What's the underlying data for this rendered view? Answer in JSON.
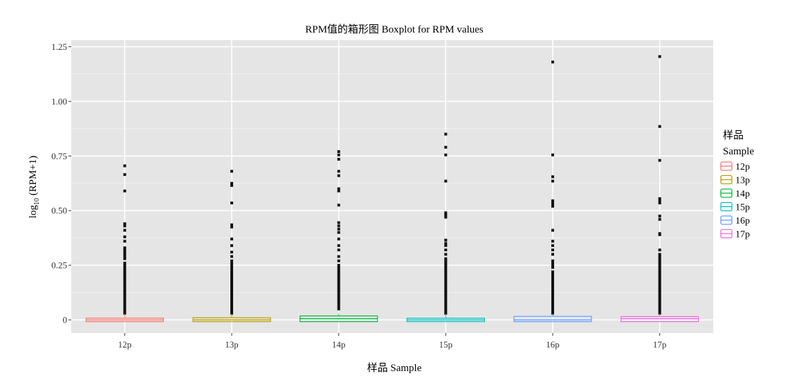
{
  "chart_data": {
    "type": "boxplot",
    "title": "RPM值的箱形图 Boxplot for RPM values",
    "xlabel": "样品 Sample",
    "ylabel": "log₁₀ (RPM+1)",
    "ylabel_prefix": "log",
    "ylabel_sub": "10",
    "ylabel_suffix": " (RPM+1)",
    "ylim": [
      -0.06,
      1.28
    ],
    "yticks": [
      0,
      0.25,
      0.5,
      0.75,
      1.0,
      1.25
    ],
    "ytick_labels": [
      "0",
      "0.25",
      "0.50",
      "0.75",
      "1.00",
      "1.25"
    ],
    "categories": [
      "12p",
      "13p",
      "14p",
      "15p",
      "16p",
      "17p"
    ],
    "grid": true,
    "legend": {
      "position": "right",
      "title_line1": "样品",
      "title_line2": "Sample",
      "entries": [
        "12p",
        "13p",
        "14p",
        "15p",
        "16p",
        "17p"
      ]
    },
    "colors": [
      "#F8766D",
      "#B79F00",
      "#00BA38",
      "#00BFC4",
      "#619CFF",
      "#F564E3"
    ],
    "series": [
      {
        "name": "12p",
        "q1": 0.0,
        "median": 0.0,
        "q3": 0.008,
        "outliers": [
          0.705,
          0.665,
          0.59,
          0.44,
          0.43,
          0.41,
          0.38,
          0.36,
          0.33,
          0.32,
          0.31,
          0.3,
          0.29,
          0.28,
          0.26,
          0.25,
          0.24,
          0.23,
          0.22,
          0.21,
          0.2,
          0.19,
          0.18,
          0.17,
          0.16,
          0.15,
          0.14,
          0.13,
          0.12,
          0.11,
          0.1,
          0.09,
          0.08,
          0.07,
          0.06,
          0.05,
          0.04,
          0.03
        ]
      },
      {
        "name": "13p",
        "q1": 0.0,
        "median": 0.0,
        "q3": 0.01,
        "outliers": [
          0.68,
          0.625,
          0.615,
          0.535,
          0.435,
          0.425,
          0.37,
          0.34,
          0.31,
          0.29,
          0.27,
          0.26,
          0.25,
          0.24,
          0.23,
          0.22,
          0.21,
          0.2,
          0.19,
          0.18,
          0.17,
          0.16,
          0.15,
          0.14,
          0.13,
          0.12,
          0.11,
          0.1,
          0.09,
          0.08,
          0.07,
          0.06,
          0.05,
          0.04,
          0.03
        ]
      },
      {
        "name": "14p",
        "q1": 0.0,
        "median": 0.005,
        "q3": 0.018,
        "outliers": [
          0.77,
          0.755,
          0.735,
          0.68,
          0.66,
          0.6,
          0.59,
          0.525,
          0.445,
          0.43,
          0.415,
          0.4,
          0.37,
          0.34,
          0.32,
          0.29,
          0.27,
          0.25,
          0.24,
          0.23,
          0.22,
          0.21,
          0.2,
          0.19,
          0.18,
          0.17,
          0.16,
          0.15,
          0.14,
          0.13,
          0.12,
          0.11,
          0.1,
          0.09,
          0.08,
          0.07,
          0.06,
          0.05
        ]
      },
      {
        "name": "15p",
        "q1": 0.0,
        "median": 0.0,
        "q3": 0.006,
        "outliers": [
          0.85,
          0.79,
          0.755,
          0.635,
          0.49,
          0.48,
          0.47,
          0.365,
          0.35,
          0.34,
          0.32,
          0.3,
          0.28,
          0.27,
          0.26,
          0.25,
          0.24,
          0.23,
          0.22,
          0.21,
          0.2,
          0.19,
          0.18,
          0.17,
          0.16,
          0.15,
          0.14,
          0.13,
          0.12,
          0.11,
          0.1,
          0.09,
          0.08,
          0.07,
          0.06,
          0.05,
          0.04,
          0.03
        ]
      },
      {
        "name": "16p",
        "q1": 0.0,
        "median": 0.0,
        "q3": 0.016,
        "outliers": [
          1.18,
          0.755,
          0.655,
          0.635,
          0.545,
          0.54,
          0.53,
          0.52,
          0.41,
          0.36,
          0.34,
          0.32,
          0.3,
          0.27,
          0.26,
          0.25,
          0.24,
          0.22,
          0.21,
          0.2,
          0.19,
          0.18,
          0.17,
          0.16,
          0.15,
          0.14,
          0.13,
          0.12,
          0.11,
          0.1,
          0.09,
          0.08,
          0.07,
          0.06,
          0.05,
          0.04,
          0.03
        ]
      },
      {
        "name": "17p",
        "q1": 0.0,
        "median": 0.005,
        "q3": 0.015,
        "outliers": [
          1.205,
          0.885,
          0.73,
          0.555,
          0.545,
          0.535,
          0.475,
          0.46,
          0.395,
          0.39,
          0.32,
          0.3,
          0.29,
          0.28,
          0.27,
          0.26,
          0.25,
          0.24,
          0.23,
          0.22,
          0.21,
          0.2,
          0.19,
          0.18,
          0.17,
          0.16,
          0.15,
          0.14,
          0.13,
          0.12,
          0.11,
          0.1,
          0.09,
          0.08,
          0.07,
          0.06,
          0.05,
          0.04,
          0.03
        ]
      }
    ]
  }
}
